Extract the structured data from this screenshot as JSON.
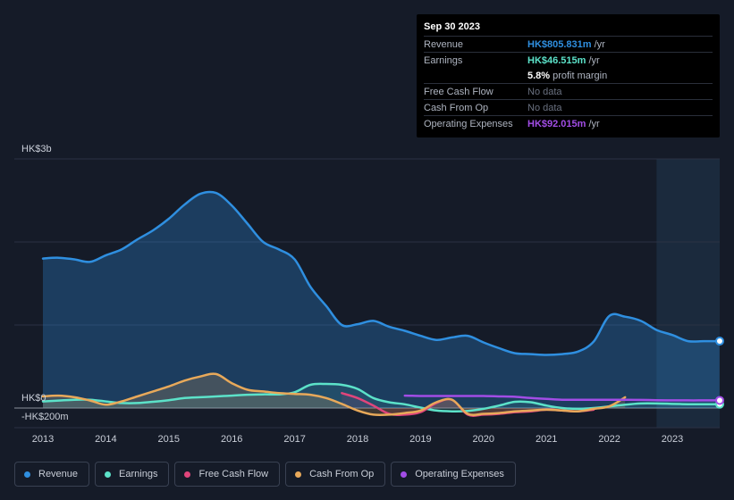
{
  "chart_data": {
    "type": "area",
    "x": [
      2013.0,
      2013.25,
      2013.5,
      2013.75,
      2014.0,
      2014.25,
      2014.5,
      2014.75,
      2015.0,
      2015.25,
      2015.5,
      2015.75,
      2016.0,
      2016.25,
      2016.5,
      2016.75,
      2017.0,
      2017.25,
      2017.5,
      2017.75,
      2018.0,
      2018.25,
      2018.5,
      2018.75,
      2019.0,
      2019.25,
      2019.5,
      2019.75,
      2020.0,
      2020.25,
      2020.5,
      2020.75,
      2021.0,
      2021.25,
      2021.5,
      2021.75,
      2022.0,
      2022.25,
      2022.5,
      2022.75,
      2023.0,
      2023.25,
      2023.5,
      2023.75
    ],
    "series": [
      {
        "name": "Revenue",
        "color": "#2f8fe0",
        "values": [
          1800,
          1810,
          1790,
          1760,
          1840,
          1910,
          2030,
          2140,
          2280,
          2450,
          2580,
          2590,
          2440,
          2220,
          2000,
          1910,
          1790,
          1460,
          1230,
          1000,
          1010,
          1050,
          980,
          930,
          870,
          820,
          850,
          870,
          790,
          720,
          660,
          650,
          640,
          650,
          680,
          800,
          1110,
          1100,
          1050,
          940,
          880,
          805.831,
          805.831,
          805.831
        ]
      },
      {
        "name": "Earnings",
        "color": "#5ce2c9",
        "values": [
          80,
          90,
          100,
          100,
          80,
          60,
          60,
          75,
          95,
          120,
          130,
          140,
          150,
          160,
          165,
          165,
          190,
          280,
          290,
          280,
          230,
          120,
          70,
          45,
          5,
          -30,
          -40,
          -35,
          -10,
          30,
          75,
          70,
          30,
          0,
          -10,
          0,
          20,
          40,
          55,
          55,
          50,
          46.515,
          46.515,
          46.515
        ]
      },
      {
        "name": "Free Cash Flow",
        "color": "#e0457b",
        "values": [
          null,
          null,
          null,
          null,
          null,
          null,
          null,
          null,
          null,
          null,
          null,
          null,
          null,
          null,
          null,
          null,
          null,
          null,
          null,
          180,
          120,
          30,
          -70,
          -80,
          -50,
          60,
          100,
          -80,
          -80,
          -70,
          -50,
          -40,
          -20,
          -30,
          -40,
          -20,
          null,
          null,
          null,
          null,
          null,
          null,
          null,
          null
        ]
      },
      {
        "name": "Cash From Op",
        "color": "#e8a95a",
        "values": [
          140,
          150,
          130,
          90,
          40,
          80,
          140,
          200,
          260,
          330,
          380,
          410,
          300,
          220,
          200,
          180,
          170,
          160,
          120,
          50,
          -30,
          -80,
          -80,
          -60,
          -30,
          70,
          100,
          -70,
          -70,
          -60,
          -40,
          -30,
          -20,
          -30,
          -40,
          -10,
          20,
          130,
          null,
          null,
          null,
          null,
          null,
          null
        ]
      },
      {
        "name": "Operating Expenses",
        "color": "#a24de6",
        "values": [
          null,
          null,
          null,
          null,
          null,
          null,
          null,
          null,
          null,
          null,
          null,
          null,
          null,
          null,
          null,
          null,
          null,
          null,
          null,
          null,
          null,
          null,
          null,
          150,
          145,
          145,
          145,
          145,
          145,
          140,
          135,
          120,
          110,
          100,
          100,
          100,
          100,
          100,
          98,
          95,
          93,
          92.015,
          92.015,
          92.015
        ]
      }
    ],
    "ylim": [
      -200,
      3000
    ],
    "y_labels": [
      "HK$3b",
      "HK$0",
      "-HK$200m"
    ],
    "x_ticks": [
      "2013",
      "2014",
      "2015",
      "2016",
      "2017",
      "2018",
      "2019",
      "2020",
      "2021",
      "2022",
      "2023"
    ]
  },
  "tooltip": {
    "date": "Sep 30 2023",
    "rows": [
      {
        "label": "Revenue",
        "value": "HK$805.831m",
        "unit": "/yr",
        "color": "#2f8fe0"
      },
      {
        "label": "Earnings",
        "value": "HK$46.515m",
        "unit": "/yr",
        "color": "#5ce2c9"
      },
      {
        "label": "",
        "value": "5.8%",
        "unit": "profit margin",
        "color": "#ffffff"
      },
      {
        "label": "Free Cash Flow",
        "value": "No data",
        "unit": "",
        "color": "#6a7180"
      },
      {
        "label": "Cash From Op",
        "value": "No data",
        "unit": "",
        "color": "#6a7180"
      },
      {
        "label": "Operating Expenses",
        "value": "HK$92.015m",
        "unit": "/yr",
        "color": "#a24de6"
      }
    ]
  },
  "legend": [
    {
      "label": "Revenue",
      "color": "#2f8fe0"
    },
    {
      "label": "Earnings",
      "color": "#5ce2c9"
    },
    {
      "label": "Free Cash Flow",
      "color": "#e0457b"
    },
    {
      "label": "Cash From Op",
      "color": "#e8a95a"
    },
    {
      "label": "Operating Expenses",
      "color": "#a24de6"
    }
  ]
}
